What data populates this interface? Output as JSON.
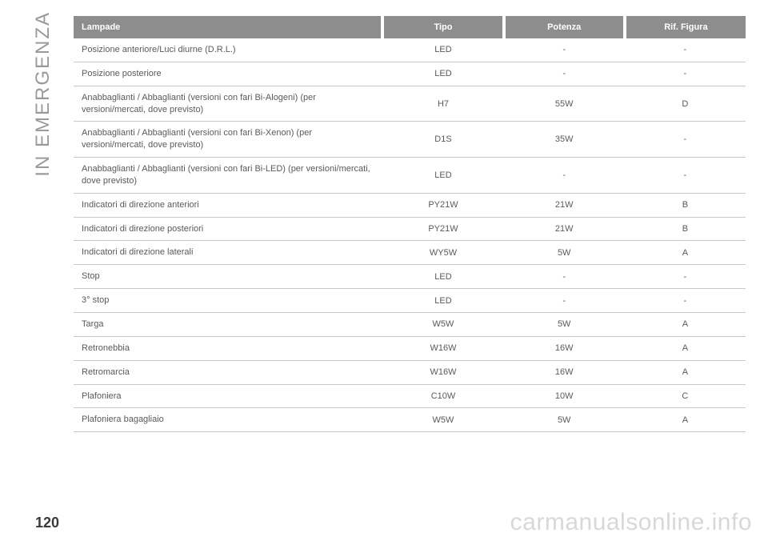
{
  "side_label": "IN EMERGENZA",
  "page_number": "120",
  "watermark": "carmanualsonline.info",
  "table": {
    "columns": [
      "Lampade",
      "Tipo",
      "Potenza",
      "Rif. Figura"
    ],
    "rows": [
      [
        "Posizione anteriore/Luci diurne (D.R.L.)",
        "LED",
        "-",
        "-"
      ],
      [
        "Posizione posteriore",
        "LED",
        "-",
        "-"
      ],
      [
        "Anabbaglianti / Abbaglianti (versioni con fari Bi-Alogeni) (per versioni/mercati, dove previsto)",
        "H7",
        "55W",
        "D"
      ],
      [
        "Anabbaglianti / Abbaglianti (versioni con fari Bi-Xenon) (per versioni/mercati, dove previsto)",
        "D1S",
        "35W",
        "-"
      ],
      [
        "Anabbaglianti / Abbaglianti (versioni con fari Bi-LED) (per versioni/mercati, dove previsto)",
        "LED",
        "-",
        "-"
      ],
      [
        "Indicatori di direzione anteriori",
        "PY21W",
        "21W",
        "B"
      ],
      [
        "Indicatori di direzione posteriori",
        "PY21W",
        "21W",
        "B"
      ],
      [
        "Indicatori di direzione laterali",
        "WY5W",
        "5W",
        "A"
      ],
      [
        "Stop",
        "LED",
        "-",
        "-"
      ],
      [
        "3° stop",
        "LED",
        "-",
        "-"
      ],
      [
        "Targa",
        "W5W",
        "5W",
        "A"
      ],
      [
        "Retronebbia",
        "W16W",
        "16W",
        "A"
      ],
      [
        "Retromarcia",
        "W16W",
        "16W",
        "A"
      ],
      [
        "Plafoniera",
        "C10W",
        "10W",
        "C"
      ],
      [
        "Plafoniera bagagliaio",
        "W5W",
        "5W",
        "A"
      ]
    ]
  }
}
